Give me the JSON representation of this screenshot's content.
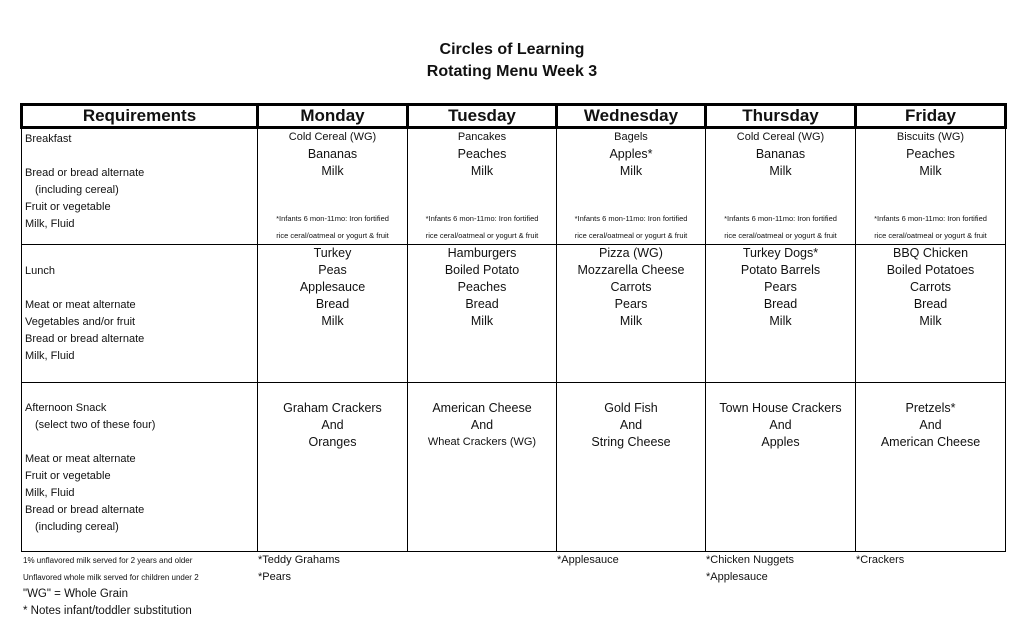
{
  "header": {
    "title": "Circles of Learning",
    "subtitle": "Rotating Menu Week 3"
  },
  "columns": [
    "Requirements",
    "Monday",
    "Tuesday",
    "Wednesday",
    "Thursday",
    "Friday"
  ],
  "infant_note": [
    "*Infants 6 mon-11mo: Iron fortified",
    "rice ceral/oatmeal or yogurt & fruit"
  ],
  "rows": [
    {
      "name": "breakfast",
      "requirements": [
        "Breakfast",
        "",
        "Bread or bread alternate",
        "  (including cereal)",
        "Fruit or vegetable",
        "Milk, Fluid"
      ],
      "days": [
        [
          "Cold Cereal (WG)",
          "Bananas",
          "Milk"
        ],
        [
          "Pancakes",
          "Peaches",
          "Milk"
        ],
        [
          "Bagels",
          "Apples*",
          "Milk"
        ],
        [
          "Cold Cereal (WG)",
          "Bananas",
          "Milk"
        ],
        [
          "Biscuits (WG)",
          "Peaches",
          "Milk"
        ]
      ]
    },
    {
      "name": "lunch",
      "requirements": [
        "",
        "Lunch",
        "",
        "Meat or meat alternate",
        "Vegetables and/or fruit",
        "Bread or bread alternate",
        "Milk, Fluid"
      ],
      "days": [
        [
          "Turkey",
          "Peas",
          "Applesauce",
          "Bread",
          "Milk"
        ],
        [
          "Hamburgers",
          "Boiled Potato",
          "Peaches",
          "Bread",
          "Milk"
        ],
        [
          "Pizza (WG)",
          "Mozzarella Cheese",
          "Carrots",
          "Pears",
          "Milk"
        ],
        [
          "Turkey Dogs*",
          "Potato Barrels",
          "Pears",
          "Bread",
          "Milk"
        ],
        [
          "BBQ Chicken",
          "Boiled Potatoes",
          "Carrots",
          "Bread",
          "Milk"
        ]
      ]
    },
    {
      "name": "afternoon-snack",
      "requirements": [
        "",
        "Afternoon Snack",
        "  (select two of these four)",
        "",
        "Meat or meat alternate",
        "Fruit or vegetable",
        "Milk, Fluid",
        "Bread or bread alternate",
        "  (including cereal)"
      ],
      "days": [
        [
          "Graham Crackers",
          "And",
          "Oranges"
        ],
        [
          "American Cheese",
          "And",
          "Wheat Crackers (WG)"
        ],
        [
          "Gold Fish",
          "And",
          "String Cheese"
        ],
        [
          "Town House Crackers",
          "And",
          "Apples"
        ],
        [
          "Pretzels*",
          "And",
          "American Cheese"
        ]
      ]
    }
  ],
  "footer": {
    "notes": [
      "1% unflavored milk served for 2 years and older",
      "Unflavored whole milk served for children under 2",
      "\"WG\" = Whole Grain",
      "* Notes infant/toddler substitution"
    ],
    "substitutions": [
      [
        "*Teddy Grahams",
        "*Pears"
      ],
      [],
      [
        "*Applesauce"
      ],
      [
        "*Chicken Nuggets",
        "*Applesauce"
      ],
      [
        "*Crackers"
      ]
    ]
  }
}
